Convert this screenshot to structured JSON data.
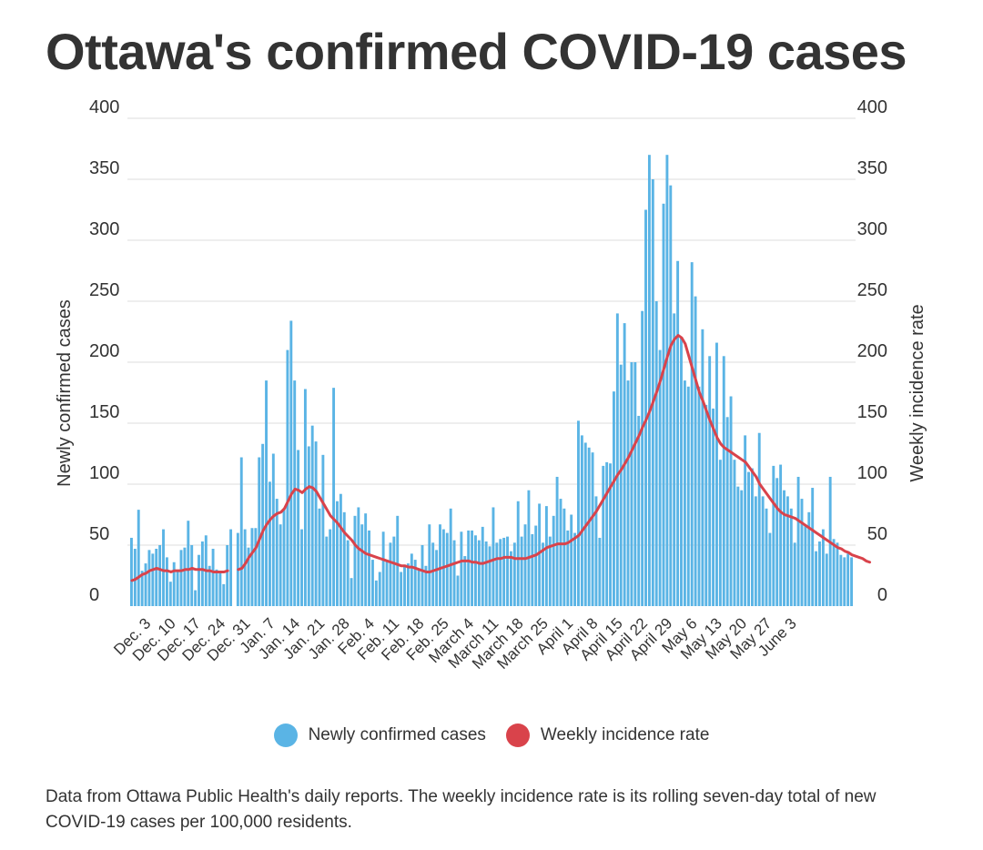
{
  "title": "Ottawa's confirmed COVID-19 cases",
  "legend": {
    "bars_label": "Newly confirmed cases",
    "line_label": "Weekly incidence rate"
  },
  "note": "Data from Ottawa Public Health's daily reports. The weekly incidence rate is its rolling seven-day total of new COVID-19 cases per 100,000 residents.",
  "colors": {
    "bars": "#5ab4e5",
    "line": "#d9434b",
    "grid": "#dddddd",
    "text": "#333333"
  },
  "chart_data": {
    "type": "bar",
    "title": "Ottawa's confirmed COVID-19 cases",
    "ylabel": "Newly confirmed cases",
    "y2label": "Weekly incidence rate",
    "ylim": [
      0,
      400
    ],
    "y2lim": [
      0,
      400
    ],
    "yticks": [
      0,
      50,
      100,
      150,
      200,
      250,
      300,
      350,
      400
    ],
    "grid": true,
    "legend_position": "bottom-center",
    "x_tick_labels": [
      "Dec. 3",
      "Dec. 10",
      "Dec. 17",
      "Dec. 24",
      "Dec. 31",
      "Jan. 7",
      "Jan. 14",
      "Jan. 21",
      "Jan. 28",
      "Feb. 4",
      "Feb. 11",
      "Feb. 18",
      "Feb. 25",
      "March 4",
      "March 11",
      "March 18",
      "March 25",
      "April 1",
      "April 8",
      "April 15",
      "April 22",
      "April 29",
      "May 6",
      "May 13",
      "May 20",
      "May 27",
      "June 3"
    ],
    "x_start": "Nov. 30",
    "x_end": "June 3",
    "series": [
      {
        "name": "Newly confirmed cases",
        "kind": "bar",
        "values": [
          56,
          47,
          79,
          29,
          35,
          46,
          43,
          47,
          50,
          63,
          40,
          20,
          36,
          29,
          46,
          48,
          70,
          50,
          13,
          42,
          53,
          58,
          33,
          47,
          30,
          27,
          18,
          50,
          63,
          null,
          60,
          122,
          63,
          48,
          64,
          64,
          122,
          133,
          185,
          102,
          125,
          88,
          67,
          80,
          210,
          234,
          185,
          128,
          63,
          178,
          131,
          148,
          135,
          80,
          124,
          57,
          63,
          179,
          86,
          92,
          77,
          54,
          23,
          74,
          81,
          67,
          76,
          62,
          38,
          21,
          28,
          61,
          37,
          52,
          57,
          74,
          28,
          34,
          35,
          43,
          38,
          31,
          50,
          33,
          67,
          52,
          46,
          67,
          63,
          60,
          80,
          54,
          25,
          61,
          41,
          62,
          62,
          58,
          54,
          65,
          53,
          49,
          81,
          52,
          55,
          56,
          57,
          45,
          52,
          86,
          57,
          67,
          95,
          59,
          66,
          84,
          52,
          82,
          57,
          74,
          106,
          88,
          80,
          62,
          75,
          60,
          152,
          140,
          134,
          130,
          126,
          90,
          56,
          115,
          118,
          117,
          176,
          240,
          198,
          232,
          185,
          200,
          200,
          156,
          242,
          325,
          370,
          350,
          250,
          210,
          330,
          370,
          345,
          240,
          283,
          220,
          185,
          180,
          282,
          254,
          180,
          227,
          165,
          205,
          162,
          216,
          120,
          205,
          155,
          172,
          120,
          98,
          95,
          140,
          110,
          113,
          90,
          142,
          90,
          80,
          60,
          115,
          105,
          116,
          95,
          90,
          80,
          52,
          106,
          88,
          67,
          77,
          97,
          45,
          53,
          63,
          43,
          106,
          55,
          52,
          42,
          40,
          43,
          40
        ]
      },
      {
        "name": "Weekly incidence rate",
        "kind": "line",
        "values": [
          21,
          22,
          24,
          26,
          27,
          29,
          30,
          31,
          30,
          29,
          29,
          28,
          29,
          29,
          29,
          30,
          30,
          31,
          30,
          30,
          30,
          29,
          29,
          28,
          28,
          28,
          28,
          29,
          null,
          null,
          30,
          31,
          35,
          40,
          44,
          48,
          55,
          62,
          67,
          71,
          74,
          76,
          77,
          80,
          86,
          92,
          96,
          95,
          93,
          96,
          98,
          97,
          94,
          89,
          84,
          79,
          74,
          71,
          68,
          64,
          60,
          57,
          54,
          50,
          47,
          45,
          43,
          42,
          41,
          40,
          39,
          38,
          37,
          36,
          35,
          34,
          33,
          33,
          32,
          32,
          31,
          30,
          29,
          28,
          28,
          29,
          30,
          31,
          32,
          33,
          34,
          35,
          36,
          37,
          37,
          37,
          36,
          36,
          35,
          35,
          36,
          37,
          38,
          39,
          39,
          40,
          40,
          40,
          39,
          39,
          39,
          39,
          40,
          41,
          42,
          44,
          46,
          48,
          49,
          50,
          51,
          51,
          51,
          52,
          54,
          56,
          58,
          62,
          66,
          70,
          74,
          78,
          83,
          88,
          93,
          98,
          103,
          108,
          112,
          117,
          122,
          128,
          134,
          140,
          147,
          153,
          160,
          168,
          176,
          185,
          195,
          205,
          214,
          219,
          222,
          220,
          215,
          205,
          195,
          185,
          175,
          168,
          160,
          152,
          145,
          138,
          133,
          130,
          128,
          126,
          124,
          122,
          120,
          118,
          114,
          110,
          106,
          100,
          96,
          92,
          88,
          84,
          80,
          77,
          75,
          74,
          73,
          72,
          70,
          68,
          66,
          64,
          62,
          60,
          58,
          56,
          54,
          52,
          50,
          48,
          47,
          45,
          44,
          42,
          41,
          40,
          39,
          37,
          36
        ]
      }
    ]
  }
}
